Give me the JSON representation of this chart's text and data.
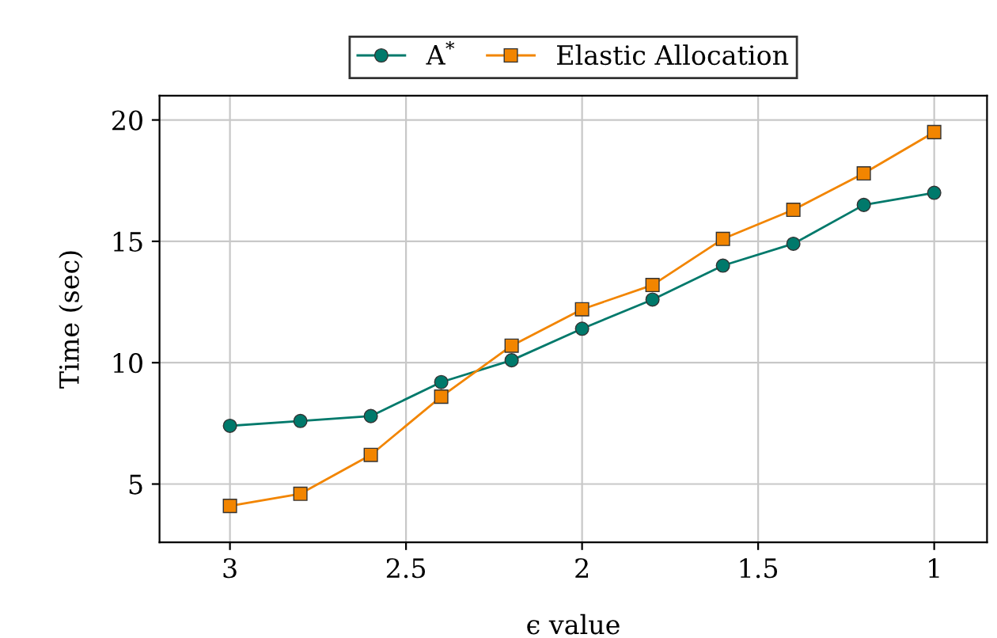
{
  "chart_data": {
    "type": "line",
    "xlabel": "ϵ value",
    "ylabel": "Time (sec)",
    "x": [
      3,
      2.8,
      2.6,
      2.4,
      2.2,
      2.0,
      1.8,
      1.6,
      1.4,
      1.2,
      1.0
    ],
    "series": [
      {
        "name": "A$^{*}$",
        "color": "#00796b",
        "marker": "circle",
        "values": [
          7.4,
          7.6,
          7.8,
          9.2,
          10.1,
          11.4,
          12.6,
          14.0,
          14.9,
          16.5,
          17.0
        ]
      },
      {
        "name": "Elastic Allocation",
        "color": "#f28500",
        "marker": "square",
        "values": [
          4.1,
          4.6,
          6.2,
          8.6,
          10.7,
          12.2,
          13.2,
          15.1,
          16.3,
          17.8,
          19.5
        ]
      }
    ],
    "xlim": [
      3.2,
      0.85
    ],
    "xticks": [
      3,
      2.5,
      2,
      1.5,
      1
    ],
    "ylim": [
      2.6,
      21
    ],
    "yticks": [
      5,
      10,
      15,
      20
    ],
    "grid": true,
    "legend": "top",
    "line_style": "solid"
  }
}
